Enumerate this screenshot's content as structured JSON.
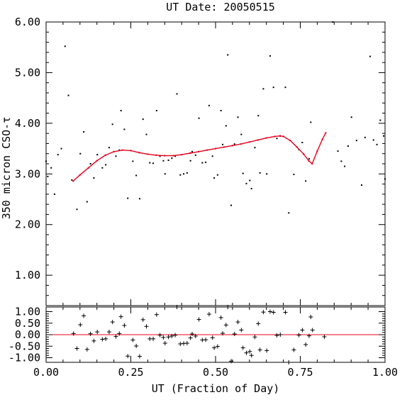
{
  "chart_data": [
    {
      "type": "scatter",
      "title": "UT Date: 20050515",
      "ylabel": "350 micron CSO-τ",
      "xlim": [
        0.0,
        1.0
      ],
      "ylim": [
        0.4,
        6.0
      ],
      "x_ticks": [
        "0.00",
        "0.25",
        "0.50",
        "0.75",
        "1.00"
      ],
      "y_ticks": [
        "1.00",
        "2.00",
        "3.00",
        "4.00",
        "5.00",
        "6.00"
      ],
      "point_color": "#000000",
      "fit_color": "#e8001c",
      "points": [
        {
          "x": 0.0,
          "y": 3.25
        },
        {
          "x": 0.005,
          "y": 2.95
        },
        {
          "x": 0.015,
          "y": 3.12
        },
        {
          "x": 0.025,
          "y": 2.6
        },
        {
          "x": 0.035,
          "y": 3.38
        },
        {
          "x": 0.045,
          "y": 3.5
        },
        {
          "x": 0.056,
          "y": 5.52
        },
        {
          "x": 0.066,
          "y": 4.55
        },
        {
          "x": 0.076,
          "y": 2.88
        },
        {
          "x": 0.091,
          "y": 2.3
        },
        {
          "x": 0.101,
          "y": 3.4
        },
        {
          "x": 0.111,
          "y": 3.83
        },
        {
          "x": 0.121,
          "y": 2.45
        },
        {
          "x": 0.131,
          "y": 3.2
        },
        {
          "x": 0.141,
          "y": 2.92
        },
        {
          "x": 0.151,
          "y": 3.38
        },
        {
          "x": 0.166,
          "y": 3.12
        },
        {
          "x": 0.176,
          "y": 3.18
        },
        {
          "x": 0.186,
          "y": 3.52
        },
        {
          "x": 0.196,
          "y": 3.98
        },
        {
          "x": 0.206,
          "y": 3.35
        },
        {
          "x": 0.216,
          "y": 3.47
        },
        {
          "x": 0.221,
          "y": 4.25
        },
        {
          "x": 0.231,
          "y": 3.88
        },
        {
          "x": 0.241,
          "y": 2.52
        },
        {
          "x": 0.256,
          "y": 3.25
        },
        {
          "x": 0.266,
          "y": 2.97
        },
        {
          "x": 0.276,
          "y": 2.51
        },
        {
          "x": 0.286,
          "y": 4.08
        },
        {
          "x": 0.296,
          "y": 3.78
        },
        {
          "x": 0.306,
          "y": 3.22
        },
        {
          "x": 0.316,
          "y": 3.21
        },
        {
          "x": 0.326,
          "y": 4.25
        },
        {
          "x": 0.336,
          "y": 3.35
        },
        {
          "x": 0.346,
          "y": 3.26
        },
        {
          "x": 0.351,
          "y": 3.0
        },
        {
          "x": 0.361,
          "y": 3.27
        },
        {
          "x": 0.371,
          "y": 3.31
        },
        {
          "x": 0.381,
          "y": 3.35
        },
        {
          "x": 0.386,
          "y": 4.58
        },
        {
          "x": 0.396,
          "y": 2.98
        },
        {
          "x": 0.406,
          "y": 3.0
        },
        {
          "x": 0.416,
          "y": 3.02
        },
        {
          "x": 0.426,
          "y": 3.26
        },
        {
          "x": 0.431,
          "y": 3.44
        },
        {
          "x": 0.441,
          "y": 3.37
        },
        {
          "x": 0.451,
          "y": 4.1
        },
        {
          "x": 0.461,
          "y": 3.22
        },
        {
          "x": 0.471,
          "y": 3.23
        },
        {
          "x": 0.481,
          "y": 4.35
        },
        {
          "x": 0.491,
          "y": 3.35
        },
        {
          "x": 0.496,
          "y": 2.92
        },
        {
          "x": 0.506,
          "y": 2.98
        },
        {
          "x": 0.516,
          "y": 4.25
        },
        {
          "x": 0.521,
          "y": 3.58
        },
        {
          "x": 0.531,
          "y": 3.95
        },
        {
          "x": 0.536,
          "y": 5.35
        },
        {
          "x": 0.546,
          "y": 2.38
        },
        {
          "x": 0.556,
          "y": 3.59
        },
        {
          "x": 0.566,
          "y": 4.12
        },
        {
          "x": 0.576,
          "y": 3.78
        },
        {
          "x": 0.581,
          "y": 3.01
        },
        {
          "x": 0.591,
          "y": 2.81
        },
        {
          "x": 0.601,
          "y": 2.87
        },
        {
          "x": 0.606,
          "y": 2.71
        },
        {
          "x": 0.616,
          "y": 3.52
        },
        {
          "x": 0.626,
          "y": 4.15
        },
        {
          "x": 0.631,
          "y": 3.02
        },
        {
          "x": 0.641,
          "y": 4.68
        },
        {
          "x": 0.651,
          "y": 3.0
        },
        {
          "x": 0.661,
          "y": 5.33
        },
        {
          "x": 0.671,
          "y": 4.71
        },
        {
          "x": 0.681,
          "y": 3.7
        },
        {
          "x": 0.691,
          "y": 3.75
        },
        {
          "x": 0.706,
          "y": 4.71
        },
        {
          "x": 0.716,
          "y": 2.23
        },
        {
          "x": 0.731,
          "y": 2.99
        },
        {
          "x": 0.746,
          "y": 3.48
        },
        {
          "x": 0.756,
          "y": 3.62
        },
        {
          "x": 0.766,
          "y": 2.86
        },
        {
          "x": 0.776,
          "y": 3.3
        },
        {
          "x": 0.781,
          "y": 4.02
        },
        {
          "x": 0.846,
          "y": 6.0
        },
        {
          "x": 0.861,
          "y": 3.45
        },
        {
          "x": 0.871,
          "y": 3.25
        },
        {
          "x": 0.881,
          "y": 3.15
        },
        {
          "x": 0.891,
          "y": 3.55
        },
        {
          "x": 0.901,
          "y": 4.12
        },
        {
          "x": 0.916,
          "y": 3.66
        },
        {
          "x": 0.931,
          "y": 2.78
        },
        {
          "x": 0.941,
          "y": 3.72
        },
        {
          "x": 0.956,
          "y": 5.32
        },
        {
          "x": 0.966,
          "y": 3.67
        },
        {
          "x": 0.976,
          "y": 3.58
        },
        {
          "x": 0.986,
          "y": 4.06
        },
        {
          "x": 0.996,
          "y": 3.75
        },
        {
          "x": 1.0,
          "y": 2.9
        }
      ],
      "fit_curve": {
        "x": [
          0.08,
          0.1,
          0.125,
          0.15,
          0.175,
          0.2,
          0.225,
          0.25,
          0.275,
          0.3,
          0.325,
          0.35,
          0.375,
          0.4,
          0.425,
          0.45,
          0.475,
          0.5,
          0.525,
          0.55,
          0.575,
          0.6,
          0.625,
          0.65,
          0.675,
          0.69,
          0.7,
          0.72,
          0.74,
          0.76,
          0.775,
          0.785,
          0.8,
          0.815,
          0.825
        ],
        "y": [
          2.86,
          2.98,
          3.12,
          3.26,
          3.37,
          3.44,
          3.47,
          3.46,
          3.42,
          3.39,
          3.37,
          3.36,
          3.36,
          3.38,
          3.41,
          3.44,
          3.47,
          3.5,
          3.53,
          3.56,
          3.59,
          3.63,
          3.67,
          3.71,
          3.74,
          3.75,
          3.74,
          3.66,
          3.53,
          3.39,
          3.26,
          3.2,
          3.45,
          3.68,
          3.81
        ]
      }
    },
    {
      "type": "scatter",
      "xlabel": "UT (Fraction of Day)",
      "xlim": [
        0.0,
        1.0
      ],
      "ylim": [
        -1.2,
        1.2
      ],
      "x_ticks": [
        "0.00",
        "0.25",
        "0.50",
        "0.75",
        "1.00"
      ],
      "y_ticks": [
        "1.00",
        "0.50",
        "0.00",
        "-0.50",
        "-1.00"
      ],
      "zero_line_color": "#e8001c",
      "marker": "plus",
      "residuals": [
        {
          "x": 0.081,
          "y": 0.05
        },
        {
          "x": 0.091,
          "y": -0.6
        },
        {
          "x": 0.101,
          "y": 0.43
        },
        {
          "x": 0.111,
          "y": 0.82
        },
        {
          "x": 0.121,
          "y": -0.64
        },
        {
          "x": 0.131,
          "y": 0.04
        },
        {
          "x": 0.141,
          "y": -0.27
        },
        {
          "x": 0.151,
          "y": 0.12
        },
        {
          "x": 0.166,
          "y": -0.2
        },
        {
          "x": 0.176,
          "y": -0.18
        },
        {
          "x": 0.186,
          "y": 0.12
        },
        {
          "x": 0.196,
          "y": 0.55
        },
        {
          "x": 0.206,
          "y": -0.08
        },
        {
          "x": 0.216,
          "y": 0.05
        },
        {
          "x": 0.221,
          "y": 0.78
        },
        {
          "x": 0.231,
          "y": 0.4
        },
        {
          "x": 0.241,
          "y": -0.93
        },
        {
          "x": 0.256,
          "y": -0.23
        },
        {
          "x": 0.266,
          "y": -0.49
        },
        {
          "x": 0.276,
          "y": -0.94
        },
        {
          "x": 0.286,
          "y": 0.65
        },
        {
          "x": 0.296,
          "y": 0.36
        },
        {
          "x": 0.306,
          "y": -0.18
        },
        {
          "x": 0.316,
          "y": -0.18
        },
        {
          "x": 0.326,
          "y": 0.87
        },
        {
          "x": 0.336,
          "y": -0.02
        },
        {
          "x": 0.346,
          "y": -0.12
        },
        {
          "x": 0.351,
          "y": -0.37
        },
        {
          "x": 0.361,
          "y": -0.1
        },
        {
          "x": 0.371,
          "y": -0.06
        },
        {
          "x": 0.381,
          "y": -0.02
        },
        {
          "x": 0.386,
          "y": 1.2
        },
        {
          "x": 0.396,
          "y": -0.4
        },
        {
          "x": 0.406,
          "y": -0.38
        },
        {
          "x": 0.416,
          "y": -0.37
        },
        {
          "x": 0.426,
          "y": -0.14
        },
        {
          "x": 0.431,
          "y": 0.03
        },
        {
          "x": 0.441,
          "y": -0.06
        },
        {
          "x": 0.451,
          "y": 0.66
        },
        {
          "x": 0.461,
          "y": -0.23
        },
        {
          "x": 0.471,
          "y": -0.22
        },
        {
          "x": 0.481,
          "y": 0.89
        },
        {
          "x": 0.491,
          "y": -0.13
        },
        {
          "x": 0.496,
          "y": -0.57
        },
        {
          "x": 0.506,
          "y": -0.51
        },
        {
          "x": 0.516,
          "y": 0.74
        },
        {
          "x": 0.521,
          "y": 0.06
        },
        {
          "x": 0.531,
          "y": 0.42
        },
        {
          "x": 0.536,
          "y": 1.2
        },
        {
          "x": 0.546,
          "y": -1.15
        },
        {
          "x": 0.556,
          "y": 0.03
        },
        {
          "x": 0.566,
          "y": 0.55
        },
        {
          "x": 0.576,
          "y": 0.2
        },
        {
          "x": 0.581,
          "y": -0.57
        },
        {
          "x": 0.591,
          "y": -0.79
        },
        {
          "x": 0.601,
          "y": -0.73
        },
        {
          "x": 0.606,
          "y": -0.9
        },
        {
          "x": 0.616,
          "y": -0.1
        },
        {
          "x": 0.626,
          "y": 0.48
        },
        {
          "x": 0.631,
          "y": -0.66
        },
        {
          "x": 0.641,
          "y": 0.98
        },
        {
          "x": 0.651,
          "y": -0.69
        },
        {
          "x": 0.661,
          "y": 1.0
        },
        {
          "x": 0.671,
          "y": 0.97
        },
        {
          "x": 0.681,
          "y": -0.03
        },
        {
          "x": 0.691,
          "y": 0.0
        },
        {
          "x": 0.706,
          "y": 0.97
        },
        {
          "x": 0.716,
          "y": -1.47
        },
        {
          "x": 0.731,
          "y": -0.66
        },
        {
          "x": 0.746,
          "y": -0.02
        },
        {
          "x": 0.756,
          "y": 0.2
        },
        {
          "x": 0.766,
          "y": -0.43
        },
        {
          "x": 0.776,
          "y": -0.05
        },
        {
          "x": 0.781,
          "y": 0.77
        },
        {
          "x": 0.786,
          "y": 0.2
        },
        {
          "x": 0.821,
          "y": -0.09
        }
      ]
    }
  ]
}
